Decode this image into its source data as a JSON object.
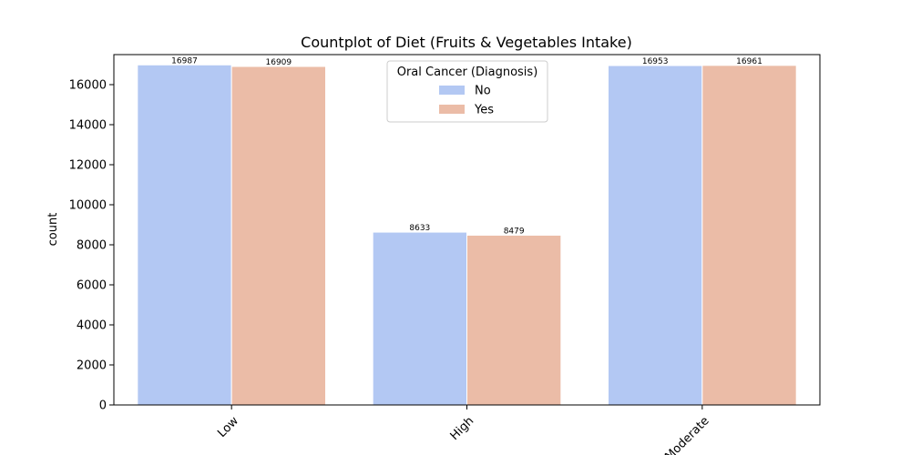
{
  "chart_data": {
    "type": "bar",
    "title": "Countplot of Diet (Fruits & Vegetables Intake)",
    "xlabel": "",
    "ylabel": "count",
    "categories": [
      "Low",
      "High",
      "Moderate"
    ],
    "series": [
      {
        "name": "No",
        "values": [
          16987,
          8633,
          16953
        ],
        "color": "#b3c8f3"
      },
      {
        "name": "Yes",
        "values": [
          16909,
          8479,
          16961
        ],
        "color": "#ebbca7"
      }
    ],
    "ylim": [
      0,
      17500
    ],
    "yticks": [
      0,
      2000,
      4000,
      6000,
      8000,
      10000,
      12000,
      14000,
      16000
    ],
    "legend": {
      "title": "Oral Cancer (Diagnosis)",
      "position": "top-center"
    },
    "grid": false
  }
}
